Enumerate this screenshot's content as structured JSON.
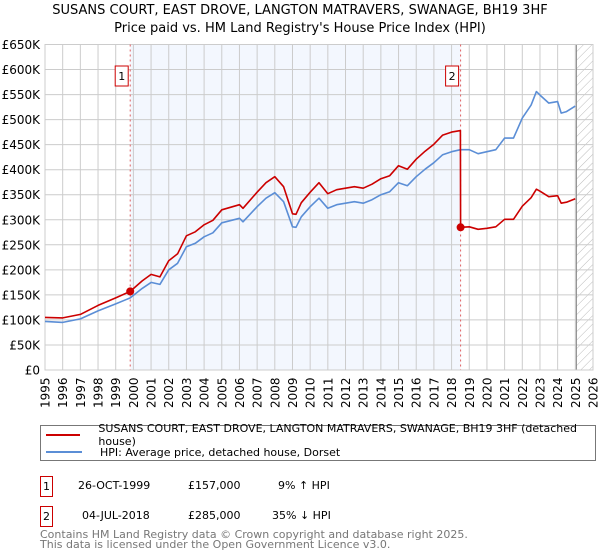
{
  "chart_data": {
    "type": "line",
    "title": "SUSANS COURT, EAST DROVE, LANGTON MATRAVERS, SWANAGE, BH19 3HF",
    "subtitle": "Price paid vs. HM Land Registry's House Price Index (HPI)",
    "xlabel": "",
    "ylabel": "",
    "xlim": [
      1995,
      2026
    ],
    "ylim": [
      0,
      650000
    ],
    "grid": true,
    "yticks": [
      0,
      50000,
      100000,
      150000,
      200000,
      250000,
      300000,
      350000,
      400000,
      450000,
      500000,
      550000,
      600000,
      650000
    ],
    "ytick_labels": [
      "£0",
      "£50K",
      "£100K",
      "£150K",
      "£200K",
      "£250K",
      "£300K",
      "£350K",
      "£400K",
      "£450K",
      "£500K",
      "£550K",
      "£600K",
      "£650K"
    ],
    "xtick_labels": [
      "1995",
      "1996",
      "1997",
      "1998",
      "1999",
      "2000",
      "2001",
      "2002",
      "2003",
      "2004",
      "2005",
      "2006",
      "2007",
      "2008",
      "2009",
      "2010",
      "2011",
      "2012",
      "2013",
      "2014",
      "2015",
      "2016",
      "2017",
      "2018",
      "2019",
      "2020",
      "2021",
      "2022",
      "2023",
      "2024",
      "2025",
      "2026"
    ],
    "shaded_range": [
      1999.82,
      2018.51
    ],
    "forecast_hatch_from": 2025.06,
    "series": [
      {
        "name": "SUSANS COURT, EAST DROVE, LANGTON MATRAVERS, SWANAGE, BH19 3HF (detached house)",
        "color": "#cc0000",
        "points": [
          [
            1995,
            105
          ],
          [
            1996,
            104
          ],
          [
            1997,
            111
          ],
          [
            1998,
            129
          ],
          [
            1999,
            144
          ],
          [
            1999.82,
            157
          ],
          [
            2000.5,
            178
          ],
          [
            2001,
            191
          ],
          [
            2001.5,
            186
          ],
          [
            2002,
            218
          ],
          [
            2002.5,
            232
          ],
          [
            2003,
            268
          ],
          [
            2003.5,
            276
          ],
          [
            2004,
            290
          ],
          [
            2004.5,
            299
          ],
          [
            2005,
            320
          ],
          [
            2006,
            330
          ],
          [
            2006.2,
            323
          ],
          [
            2007,
            355
          ],
          [
            2007.5,
            374
          ],
          [
            2008,
            386
          ],
          [
            2008.5,
            366
          ],
          [
            2009,
            312
          ],
          [
            2009.2,
            311
          ],
          [
            2009.5,
            334
          ],
          [
            2010,
            355
          ],
          [
            2010.5,
            374
          ],
          [
            2011,
            352
          ],
          [
            2011.5,
            360
          ],
          [
            2012,
            363
          ],
          [
            2012.5,
            366
          ],
          [
            2013,
            363
          ],
          [
            2013.5,
            371
          ],
          [
            2014,
            382
          ],
          [
            2014.5,
            388
          ],
          [
            2015,
            408
          ],
          [
            2015.5,
            401
          ],
          [
            2016,
            421
          ],
          [
            2016.5,
            437
          ],
          [
            2017,
            451
          ],
          [
            2017.5,
            469
          ],
          [
            2018,
            475
          ],
          [
            2018.5,
            478
          ],
          [
            2018.51,
            285
          ],
          [
            2019,
            286
          ],
          [
            2019.5,
            281
          ],
          [
            2020,
            283
          ],
          [
            2020.5,
            286
          ],
          [
            2021,
            301
          ],
          [
            2021.5,
            301
          ],
          [
            2022,
            327
          ],
          [
            2022.5,
            344
          ],
          [
            2022.8,
            361
          ],
          [
            2023,
            357
          ],
          [
            2023.5,
            346
          ],
          [
            2024,
            348
          ],
          [
            2024.2,
            333
          ],
          [
            2024.5,
            335
          ],
          [
            2025,
            342
          ]
        ]
      },
      {
        "name": "HPI: Average price, detached house, Dorset",
        "color": "#5b8ed6",
        "points": [
          [
            1995,
            97
          ],
          [
            1996,
            95
          ],
          [
            1997,
            102
          ],
          [
            1998,
            118
          ],
          [
            1999,
            132
          ],
          [
            1999.82,
            144
          ],
          [
            2000.5,
            163
          ],
          [
            2001,
            175
          ],
          [
            2001.5,
            171
          ],
          [
            2002,
            200
          ],
          [
            2002.5,
            213
          ],
          [
            2003,
            246
          ],
          [
            2003.5,
            253
          ],
          [
            2004,
            266
          ],
          [
            2004.5,
            274
          ],
          [
            2005,
            294
          ],
          [
            2006,
            303
          ],
          [
            2006.2,
            296
          ],
          [
            2007,
            326
          ],
          [
            2007.5,
            343
          ],
          [
            2008,
            354
          ],
          [
            2008.5,
            336
          ],
          [
            2009,
            286
          ],
          [
            2009.2,
            285
          ],
          [
            2009.5,
            306
          ],
          [
            2010,
            326
          ],
          [
            2010.5,
            343
          ],
          [
            2011,
            323
          ],
          [
            2011.5,
            330
          ],
          [
            2012,
            333
          ],
          [
            2012.5,
            336
          ],
          [
            2013,
            333
          ],
          [
            2013.5,
            340
          ],
          [
            2014,
            350
          ],
          [
            2014.5,
            356
          ],
          [
            2015,
            374
          ],
          [
            2015.5,
            368
          ],
          [
            2016,
            386
          ],
          [
            2016.5,
            401
          ],
          [
            2017,
            414
          ],
          [
            2017.5,
            430
          ],
          [
            2018,
            436
          ],
          [
            2018.5,
            440
          ],
          [
            2019,
            440
          ],
          [
            2019.5,
            432
          ],
          [
            2020,
            436
          ],
          [
            2020.5,
            440
          ],
          [
            2021,
            463
          ],
          [
            2021.5,
            463
          ],
          [
            2022,
            503
          ],
          [
            2022.5,
            529
          ],
          [
            2022.8,
            556
          ],
          [
            2023,
            549
          ],
          [
            2023.5,
            533
          ],
          [
            2024,
            536
          ],
          [
            2024.2,
            513
          ],
          [
            2024.5,
            516
          ],
          [
            2025,
            527
          ]
        ]
      }
    ],
    "y_units_of_points": "thousands GBP",
    "sales": [
      {
        "id": "1",
        "x": 1999.82,
        "y": 157000
      },
      {
        "id": "2",
        "x": 2018.51,
        "y": 285000
      }
    ]
  },
  "header": {
    "line1": "SUSANS COURT, EAST DROVE, LANGTON MATRAVERS, SWANAGE, BH19 3HF",
    "line2": "Price paid vs. HM Land Registry's House Price Index (HPI)"
  },
  "legend": {
    "property": "SUSANS COURT, EAST DROVE, LANGTON MATRAVERS, SWANAGE, BH19 3HF (detached house)",
    "hpi": "HPI: Average price, detached house, Dorset"
  },
  "transactions": [
    {
      "id": "1",
      "date": "26-OCT-1999",
      "price": "£157,000",
      "hpi": "9% ↑ HPI"
    },
    {
      "id": "2",
      "date": "04-JUL-2018",
      "price": "£285,000",
      "hpi": "35% ↓ HPI"
    }
  ],
  "footer": {
    "line1": "Contains HM Land Registry data © Crown copyright and database right 2025.",
    "line2": "This data is licensed under the Open Government Licence v3.0."
  }
}
